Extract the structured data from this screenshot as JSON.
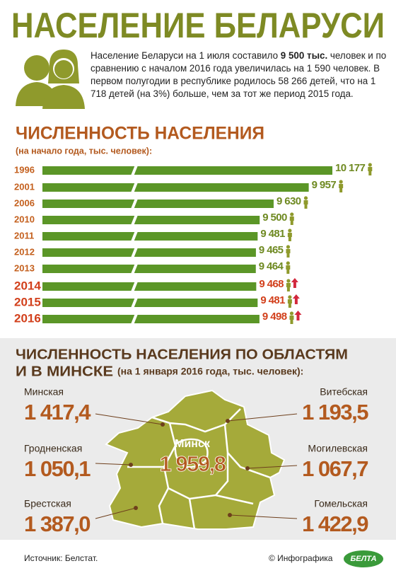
{
  "header": {
    "title": "НАСЕЛЕНИЕ БЕЛАРУСИ",
    "intro": {
      "before": "Население Беларуси на 1 июля составило ",
      "bold": "9 500 тыс.",
      "after": " человек и по сравнению с началом 2016 года увеличилась на 1 590 человек. В первом полугодии в республике родилось 58 266 детей, что на 1 718 детей (на 3%) больше, чем за тот же период 2015 года."
    }
  },
  "chart_data": {
    "type": "hbar",
    "title": "ЧИСЛЕННОСТЬ НАСЕЛЕНИЯ",
    "subtitle": "(на начало года, тыс. человек):",
    "categories": [
      "1996",
      "2001",
      "2006",
      "2010",
      "2011",
      "2012",
      "2013",
      "2014",
      "2015",
      "2016"
    ],
    "values": [
      10177,
      9957,
      9630,
      9500,
      9481,
      9465,
      9464,
      9468,
      9481,
      9498
    ],
    "value_labels": [
      "10 177",
      "9 957",
      "9 630",
      "9 500",
      "9 481",
      "9 465",
      "9 464",
      "9 468",
      "9 481",
      "9 498"
    ],
    "highlight": [
      false,
      false,
      false,
      false,
      false,
      false,
      false,
      true,
      true,
      true
    ],
    "color": "#5b9627",
    "xlim": [
      7200,
      10200
    ],
    "axis_break": true
  },
  "regions": {
    "title": "ЧИСЛЕННОСТЬ НАСЕЛЕНИЯ ПО ОБЛАСТЯМ",
    "title2": "И В МИНСКЕ",
    "subtitle": "(на 1 января 2016 года, тыс. человек):",
    "items": [
      {
        "name": "Минская",
        "value": "1 417,4"
      },
      {
        "name": "Витебская",
        "value": "1 193,5"
      },
      {
        "name": "Гродненская",
        "value": "1 050,1"
      },
      {
        "name": "Могилевская",
        "value": "1 067,7"
      },
      {
        "name": "Брестская",
        "value": "1 387,0"
      },
      {
        "name": "Гомельская",
        "value": "1 422,9"
      },
      {
        "name": "Минск",
        "value": "1 959,8"
      }
    ]
  },
  "footer": {
    "source": "Источник: Белстат.",
    "credit": "© Инфографика",
    "logo": "БЕЛТА"
  }
}
